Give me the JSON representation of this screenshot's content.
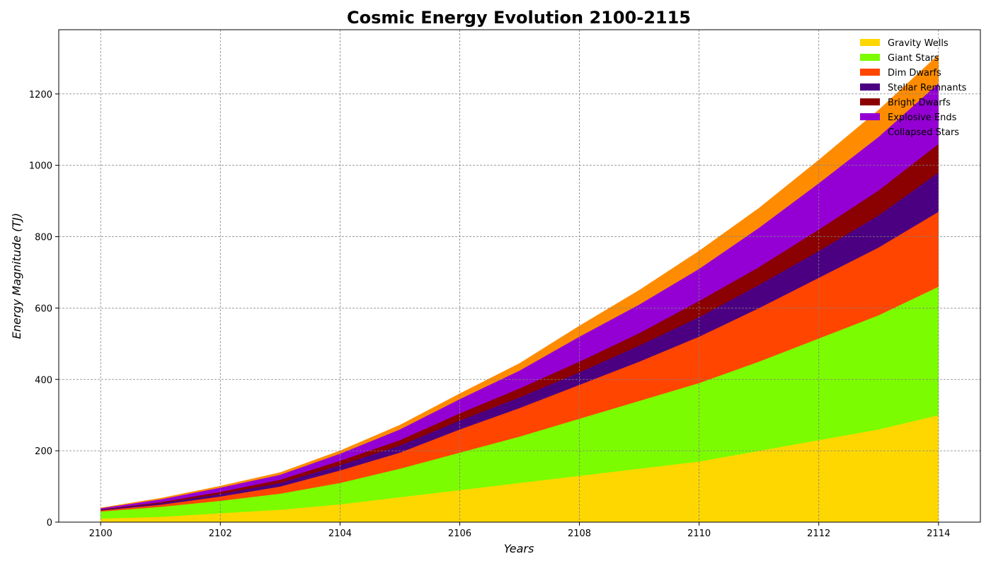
{
  "chart_data": {
    "type": "area",
    "stacked": true,
    "title": "Cosmic Energy Evolution 2100-2115",
    "xlabel": "Years",
    "ylabel": "Energy Magnitude (TJ)",
    "x": [
      2100,
      2101,
      2102,
      2103,
      2104,
      2105,
      2106,
      2107,
      2108,
      2109,
      2110,
      2111,
      2112,
      2113,
      2114
    ],
    "xlim": [
      2099.3,
      2114.7
    ],
    "ylim": [
      0,
      1380
    ],
    "xticks": [
      2100,
      2102,
      2104,
      2106,
      2108,
      2110,
      2112,
      2114
    ],
    "yticks": [
      0,
      200,
      400,
      600,
      800,
      1000,
      1200
    ],
    "grid": true,
    "legend_position": "top-right",
    "series": [
      {
        "name": "Gravity Wells",
        "color": "#FFD700",
        "values": [
          10,
          15,
          25,
          35,
          50,
          70,
          90,
          110,
          130,
          150,
          170,
          200,
          230,
          260,
          300
        ]
      },
      {
        "name": "Giant Stars",
        "color": "#7CFC00",
        "values": [
          20,
          28,
          35,
          45,
          60,
          80,
          105,
          130,
          160,
          190,
          220,
          250,
          285,
          320,
          360
        ]
      },
      {
        "name": "Dim Dwarfs",
        "color": "#FF4500",
        "values": [
          3,
          6,
          12,
          20,
          35,
          45,
          65,
          80,
          95,
          110,
          130,
          150,
          170,
          190,
          210
        ]
      },
      {
        "name": "Stellar Remnants",
        "color": "#4B0082",
        "values": [
          2,
          4,
          7,
          10,
          15,
          20,
          25,
          30,
          35,
          45,
          55,
          65,
          75,
          90,
          110
        ]
      },
      {
        "name": "Bright Dwarfs",
        "color": "#8B0000",
        "values": [
          1,
          3,
          6,
          9,
          12,
          15,
          20,
          25,
          30,
          35,
          45,
          50,
          60,
          70,
          80
        ]
      },
      {
        "name": "Explosive Ends",
        "color": "#9400D3",
        "values": [
          3,
          8,
          12,
          14,
          20,
          30,
          40,
          50,
          70,
          80,
          90,
          110,
          130,
          150,
          170
        ]
      },
      {
        "name": "Collapsed Stars",
        "color": "#FF8C00",
        "values": [
          1,
          3,
          4,
          6,
          8,
          12,
          15,
          20,
          30,
          40,
          50,
          55,
          65,
          75,
          80
        ]
      }
    ]
  }
}
